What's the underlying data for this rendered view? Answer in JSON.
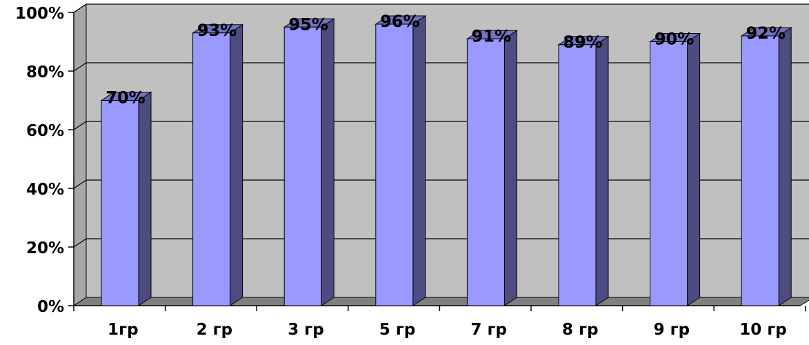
{
  "chart_data": {
    "type": "bar",
    "categories": [
      "1гр",
      "2 гр",
      "3 гр",
      "5 гр",
      "7 гр",
      "8 гр",
      "9 гр",
      "10 гр"
    ],
    "values": [
      70,
      93,
      95,
      96,
      91,
      89,
      90,
      92
    ],
    "data_labels": [
      "70%",
      "93%",
      "95%",
      "96%",
      "91%",
      "89%",
      "90%",
      "92%"
    ],
    "y_ticks": [
      0,
      20,
      40,
      60,
      80,
      100
    ],
    "y_tick_labels": [
      "0%",
      "20%",
      "40%",
      "60%",
      "80%",
      "100%"
    ],
    "ylim": [
      0,
      100
    ],
    "grid": true,
    "three_d": true,
    "colors": {
      "bar_front": "#9999ff",
      "bar_side": "#4c4c80",
      "bar_top": "#7373bf",
      "wall": "#c0c0c0",
      "floor": "#808080",
      "gridline": "#000000"
    }
  }
}
